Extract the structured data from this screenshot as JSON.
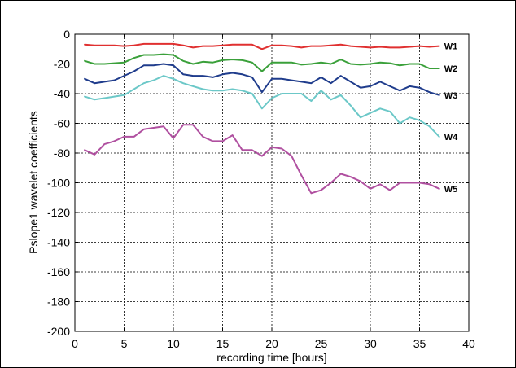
{
  "chart_data": {
    "type": "line",
    "title": "",
    "xlabel": "recording time [hours]",
    "ylabel": "Pslope1 wavelet coefficients",
    "xlim": [
      0,
      40
    ],
    "ylim": [
      -200,
      0
    ],
    "xticks": [
      0,
      5,
      10,
      15,
      20,
      25,
      30,
      35,
      40
    ],
    "yticks": [
      -200,
      -180,
      -160,
      -140,
      -120,
      -100,
      -80,
      -60,
      -40,
      -20,
      0
    ],
    "grid": true,
    "x": [
      1,
      2,
      3,
      4,
      5,
      6,
      7,
      8,
      9,
      10,
      11,
      12,
      13,
      14,
      15,
      16,
      17,
      18,
      19,
      20,
      21,
      22,
      23,
      24,
      25,
      26,
      27,
      28,
      29,
      30,
      31,
      32,
      33,
      34,
      35,
      36,
      37
    ],
    "series": [
      {
        "name": "W1",
        "color": "#e03030",
        "values": [
          -7,
          -7.5,
          -7.5,
          -7.5,
          -8,
          -7.5,
          -6.5,
          -6.5,
          -6.5,
          -6.5,
          -7.5,
          -9,
          -8,
          -8,
          -7.5,
          -7,
          -7,
          -7,
          -10,
          -7.5,
          -7.5,
          -8,
          -9,
          -8,
          -8,
          -7.5,
          -7,
          -8,
          -8.5,
          -9,
          -8.5,
          -9,
          -9,
          -8.5,
          -8,
          -8.5,
          -8
        ]
      },
      {
        "name": "W2",
        "color": "#3aa03a",
        "values": [
          -18,
          -20,
          -20,
          -19.5,
          -19,
          -16,
          -14,
          -14,
          -13.5,
          -14,
          -18,
          -20,
          -18.5,
          -19,
          -17.5,
          -17,
          -17.5,
          -19,
          -25,
          -19,
          -19,
          -19,
          -20.5,
          -20,
          -19,
          -20,
          -17,
          -20,
          -20.5,
          -20,
          -19,
          -19.5,
          -21,
          -20,
          -20,
          -23,
          -23
        ]
      },
      {
        "name": "W3",
        "color": "#1f3c8c",
        "values": [
          -30,
          -33,
          -32,
          -31,
          -28,
          -25,
          -21,
          -21,
          -20,
          -21,
          -27,
          -28,
          -28,
          -29,
          -27,
          -26,
          -27,
          -29,
          -39,
          -30,
          -30,
          -31,
          -32,
          -33,
          -29,
          -33,
          -28,
          -32,
          -36,
          -35,
          -32,
          -35,
          -38,
          -35,
          -36,
          -39,
          -41
        ]
      },
      {
        "name": "W4",
        "color": "#6cc8c8",
        "values": [
          -42,
          -44,
          -43,
          -42,
          -41,
          -37,
          -33,
          -31,
          -28,
          -30,
          -33,
          -35,
          -37,
          -38,
          -38,
          -37,
          -38,
          -40,
          -50,
          -43,
          -40,
          -40,
          -40,
          -45,
          -38,
          -44,
          -41,
          -48,
          -56,
          -53,
          -50,
          -52,
          -60,
          -56,
          -58,
          -62,
          -69
        ]
      },
      {
        "name": "W5",
        "color": "#b050a0",
        "values": [
          -78,
          -81,
          -74,
          -72,
          -69,
          -69,
          -64,
          -63,
          -62,
          -70,
          -61,
          -61,
          -69,
          -72,
          -72,
          -68,
          -78,
          -78,
          -82,
          -76,
          -77,
          -82,
          -95,
          -107,
          -105,
          -100,
          -94,
          -96,
          -99,
          -104,
          -101,
          -105,
          -100,
          -100,
          -100,
          -101,
          -104
        ]
      }
    ]
  }
}
